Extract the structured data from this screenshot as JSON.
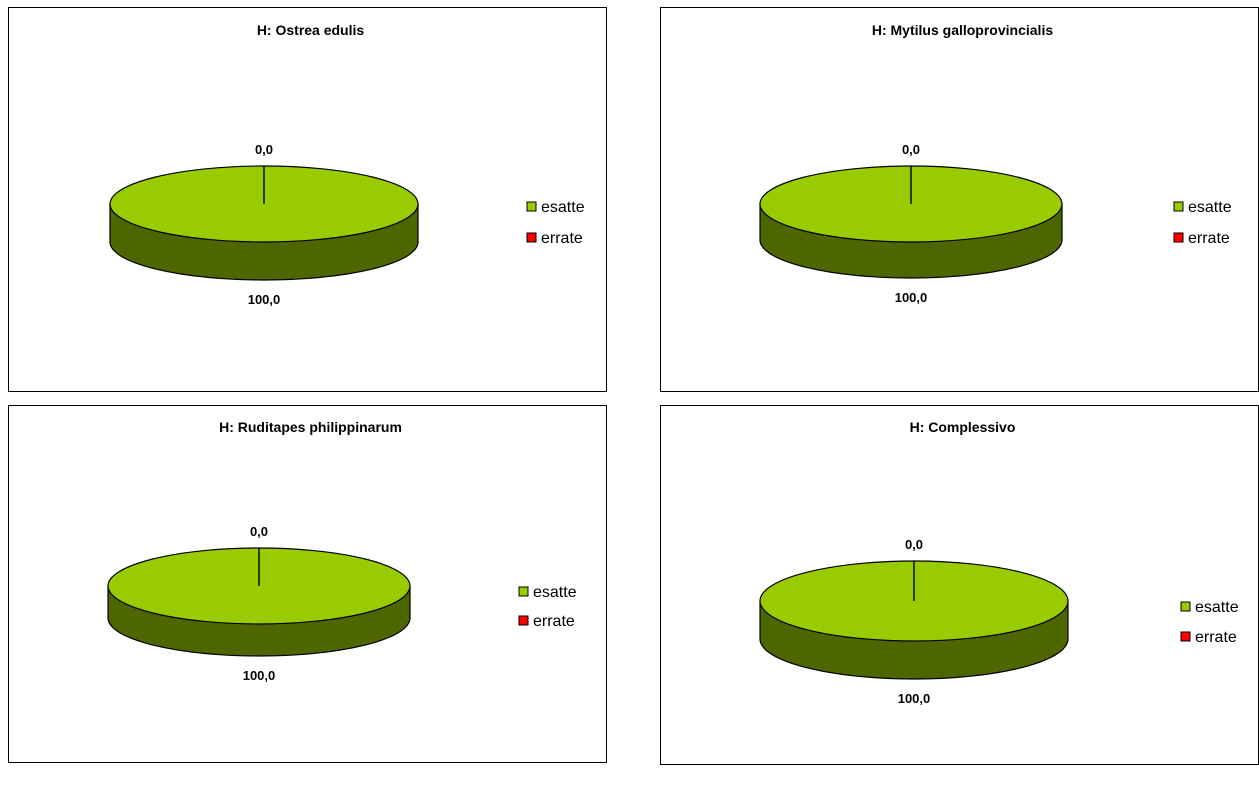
{
  "colors": {
    "esatte_top": "#99cc00",
    "esatte_side": "#4d6600",
    "errate": "#ff0000",
    "outline": "#000000"
  },
  "chart_data": [
    {
      "type": "pie",
      "title": "H: Ostrea edulis",
      "slices": [
        {
          "name": "esatte",
          "value": 100.0,
          "label": "100,0"
        },
        {
          "name": "errate",
          "value": 0.0,
          "label": "0,0"
        }
      ],
      "legend": [
        "esatte",
        "errate"
      ],
      "legend_position": "right"
    },
    {
      "type": "pie",
      "title": "H: Mytilus galloprovincialis",
      "slices": [
        {
          "name": "esatte",
          "value": 100.0,
          "label": "100,0"
        },
        {
          "name": "errate",
          "value": 0.0,
          "label": "0,0"
        }
      ],
      "legend": [
        "esatte",
        "errate"
      ],
      "legend_position": "right"
    },
    {
      "type": "pie",
      "title": "H: Ruditapes philippinarum",
      "slices": [
        {
          "name": "esatte",
          "value": 100.0,
          "label": "100,0"
        },
        {
          "name": "errate",
          "value": 0.0,
          "label": "0,0"
        }
      ],
      "legend": [
        "esatte",
        "errate"
      ],
      "legend_position": "right"
    },
    {
      "type": "pie",
      "title": "H: Complessivo",
      "slices": [
        {
          "name": "esatte",
          "value": 100.0,
          "label": "100,0"
        },
        {
          "name": "errate",
          "value": 0.0,
          "label": "0,0"
        }
      ],
      "legend": [
        "esatte",
        "errate"
      ],
      "legend_position": "right"
    }
  ]
}
